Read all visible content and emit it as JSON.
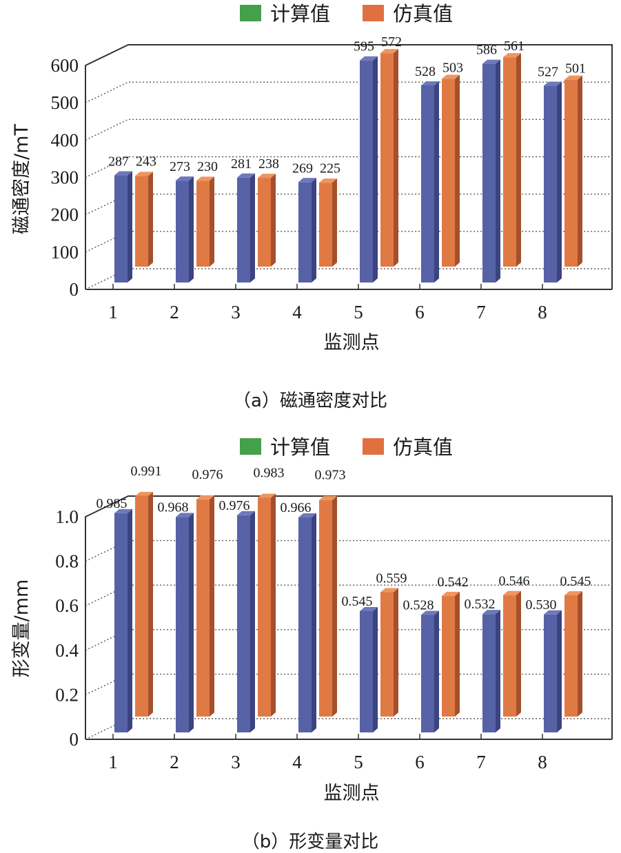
{
  "colors": {
    "legend_calc": "#44a04a",
    "legend_sim": "#e07040",
    "bar_calc_front": "#5762a6",
    "bar_calc_side": "#3b4380",
    "bar_calc_top": "#6e79bb",
    "bar_sim_front": "#e07a45",
    "bar_sim_side": "#a5502a",
    "bar_sim_top": "#ee955f",
    "axis": "#333333",
    "grid": "#555555"
  },
  "chart_data": [
    {
      "type": "bar",
      "title": "（a）磁通密度对比",
      "xlabel": "监测点",
      "ylabel": "磁通密度/mT",
      "categories": [
        "1",
        "2",
        "3",
        "4",
        "5",
        "6",
        "7",
        "8"
      ],
      "yticks": [
        "0",
        "100",
        "200",
        "300",
        "400",
        "500",
        "600"
      ],
      "ylim": [
        0,
        600
      ],
      "grid": true,
      "legend_position": "top",
      "series": [
        {
          "name": "计算值",
          "values": [
            287,
            273,
            281,
            269,
            595,
            528,
            586,
            527
          ]
        },
        {
          "name": "仿真值",
          "values": [
            243,
            230,
            238,
            225,
            572,
            503,
            561,
            501
          ]
        }
      ]
    },
    {
      "type": "bar",
      "title": "（b）形变量对比",
      "xlabel": "监测点",
      "ylabel": "形变量/mm",
      "categories": [
        "1",
        "2",
        "3",
        "4",
        "5",
        "6",
        "7",
        "8"
      ],
      "yticks": [
        "0",
        "0.2",
        "0.4",
        "0.6",
        "0.8",
        "1.0"
      ],
      "ylim": [
        0,
        1.0
      ],
      "grid": true,
      "legend_position": "top",
      "series": [
        {
          "name": "计算值",
          "values": [
            0.985,
            0.968,
            0.976,
            0.966,
            0.545,
            0.528,
            0.532,
            0.53
          ]
        },
        {
          "name": "仿真值",
          "values": [
            0.991,
            0.976,
            0.983,
            0.973,
            0.559,
            0.542,
            0.546,
            0.545
          ]
        }
      ]
    }
  ],
  "charts": [
    {
      "legend": {
        "calc": "计算值",
        "sim": "仿真值"
      },
      "ylabel": "磁通密度/mT",
      "xlabel": "监测点",
      "caption": "（a）磁通密度对比",
      "yticks": [
        "0",
        "100",
        "200",
        "300",
        "400",
        "500",
        "600"
      ],
      "categories": [
        "1",
        "2",
        "3",
        "4",
        "5",
        "6",
        "7",
        "8"
      ],
      "calc_labels": [
        "287",
        "273",
        "281",
        "269",
        "595",
        "528",
        "586",
        "527"
      ],
      "sim_labels": [
        "243",
        "230",
        "238",
        "225",
        "572",
        "503",
        "561",
        "501"
      ]
    },
    {
      "legend": {
        "calc": "计算值",
        "sim": "仿真值"
      },
      "ylabel": "形变量/mm",
      "xlabel": "监测点",
      "caption": "（b）形变量对比",
      "yticks": [
        "0",
        "0.2",
        "0.4",
        "0.6",
        "0.8",
        "1.0"
      ],
      "categories": [
        "1",
        "2",
        "3",
        "4",
        "5",
        "6",
        "7",
        "8"
      ],
      "calc_labels": [
        "0.985",
        "0.968",
        "0.976",
        "0.966",
        "0.545",
        "0.528",
        "0.532",
        "0.530"
      ],
      "sim_labels": [
        "0.991",
        "0.976",
        "0.983",
        "0.973",
        "0.559",
        "0.542",
        "0.546",
        "0.545"
      ]
    }
  ]
}
